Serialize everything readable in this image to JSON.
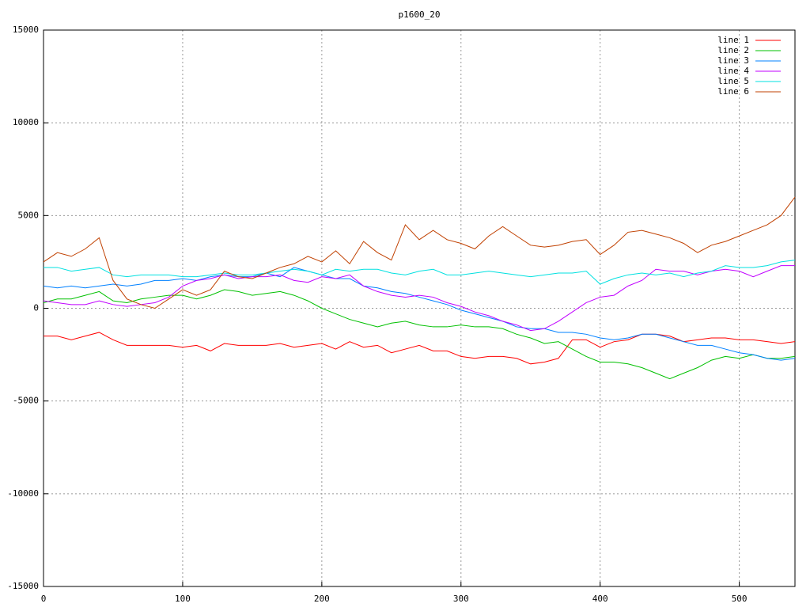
{
  "chart_data": {
    "type": "line",
    "title": "p1600_20",
    "x": [
      0,
      10,
      20,
      30,
      40,
      50,
      60,
      70,
      80,
      90,
      100,
      110,
      120,
      130,
      140,
      150,
      160,
      170,
      180,
      190,
      200,
      210,
      220,
      230,
      240,
      250,
      260,
      270,
      280,
      290,
      300,
      310,
      320,
      330,
      340,
      350,
      360,
      370,
      380,
      390,
      400,
      410,
      420,
      430,
      440,
      450,
      460,
      470,
      480,
      490,
      500,
      510,
      520,
      530,
      540
    ],
    "xlim": [
      0,
      540
    ],
    "xticks": [
      0,
      100,
      200,
      300,
      400,
      500
    ],
    "ylim": [
      -15000,
      15000
    ],
    "yticks": [
      -15000,
      -10000,
      -5000,
      0,
      5000,
      10000,
      15000
    ],
    "grid": true,
    "legend": "top-right",
    "series": [
      {
        "name": "line 1",
        "color": "#ff0000",
        "values": [
          -1500,
          -1500,
          -1700,
          -1500,
          -1300,
          -1700,
          -2000,
          -2000,
          -2000,
          -2000,
          -2100,
          -2000,
          -2300,
          -1900,
          -2000,
          -2000,
          -2000,
          -1900,
          -2100,
          -2000,
          -1900,
          -2200,
          -1800,
          -2100,
          -2000,
          -2400,
          -2200,
          -2000,
          -2300,
          -2300,
          -2600,
          -2700,
          -2600,
          -2600,
          -2700,
          -3000,
          -2900,
          -2700,
          -1700,
          -1700,
          -2100,
          -1800,
          -1700,
          -1400,
          -1400,
          -1500,
          -1800,
          -1700,
          -1600,
          -1600,
          -1700,
          -1700,
          -1800,
          -1900,
          -1800
        ]
      },
      {
        "name": "line 2",
        "color": "#00c000",
        "values": [
          300,
          500,
          500,
          700,
          900,
          400,
          300,
          500,
          600,
          700,
          700,
          500,
          700,
          1000,
          900,
          700,
          800,
          900,
          700,
          400,
          0,
          -300,
          -600,
          -800,
          -1000,
          -800,
          -700,
          -900,
          -1000,
          -1000,
          -900,
          -1000,
          -1000,
          -1100,
          -1400,
          -1600,
          -1900,
          -1800,
          -2200,
          -2600,
          -2900,
          -2900,
          -3000,
          -3200,
          -3500,
          -3800,
          -3500,
          -3200,
          -2800,
          -2600,
          -2700,
          -2500,
          -2700,
          -2700,
          -2600
        ]
      },
      {
        "name": "line 3",
        "color": "#0080ff",
        "values": [
          1200,
          1100,
          1200,
          1100,
          1200,
          1300,
          1200,
          1300,
          1500,
          1500,
          1600,
          1500,
          1700,
          1800,
          1700,
          1700,
          1900,
          1700,
          2200,
          2000,
          1800,
          1600,
          1600,
          1200,
          1100,
          900,
          800,
          600,
          400,
          200,
          -100,
          -300,
          -500,
          -700,
          -1000,
          -1100,
          -1100,
          -1300,
          -1300,
          -1400,
          -1600,
          -1700,
          -1600,
          -1400,
          -1400,
          -1600,
          -1800,
          -2000,
          -2000,
          -2200,
          -2400,
          -2500,
          -2700,
          -2800,
          -2700
        ]
      },
      {
        "name": "line 4",
        "color": "#c000ff",
        "values": [
          400,
          300,
          200,
          200,
          400,
          200,
          100,
          200,
          300,
          600,
          1200,
          1500,
          1600,
          1800,
          1600,
          1700,
          1700,
          1800,
          1500,
          1400,
          1700,
          1600,
          1800,
          1200,
          900,
          700,
          600,
          700,
          600,
          300,
          100,
          -200,
          -400,
          -700,
          -900,
          -1200,
          -1100,
          -700,
          -200,
          300,
          600,
          700,
          1200,
          1500,
          2100,
          2000,
          2000,
          1800,
          2000,
          2100,
          2000,
          1700,
          2000,
          2300,
          2300
        ]
      },
      {
        "name": "line 5",
        "color": "#00e0e0",
        "values": [
          2200,
          2200,
          2000,
          2100,
          2200,
          1800,
          1700,
          1800,
          1800,
          1800,
          1700,
          1700,
          1800,
          1900,
          1800,
          1800,
          1900,
          2000,
          2100,
          2000,
          1800,
          2100,
          2000,
          2100,
          2100,
          1900,
          1800,
          2000,
          2100,
          1800,
          1800,
          1900,
          2000,
          1900,
          1800,
          1700,
          1800,
          1900,
          1900,
          2000,
          1300,
          1600,
          1800,
          1900,
          1800,
          1900,
          1700,
          1900,
          2000,
          2300,
          2200,
          2200,
          2300,
          2500,
          2600
        ]
      },
      {
        "name": "line 6",
        "color": "#c04000",
        "values": [
          2500,
          3000,
          2800,
          3200,
          3800,
          1500,
          500,
          200,
          0,
          500,
          1000,
          700,
          1000,
          2000,
          1700,
          1600,
          1900,
          2200,
          2400,
          2800,
          2500,
          3100,
          2400,
          3600,
          3000,
          2600,
          4500,
          3700,
          4200,
          3700,
          3500,
          3200,
          3900,
          4400,
          3900,
          3400,
          3300,
          3400,
          3600,
          3700,
          2900,
          3400,
          4100,
          4200,
          4000,
          3800,
          3500,
          3000,
          3400,
          3600,
          3900,
          4200,
          4500,
          5000,
          6000
        ]
      }
    ]
  }
}
